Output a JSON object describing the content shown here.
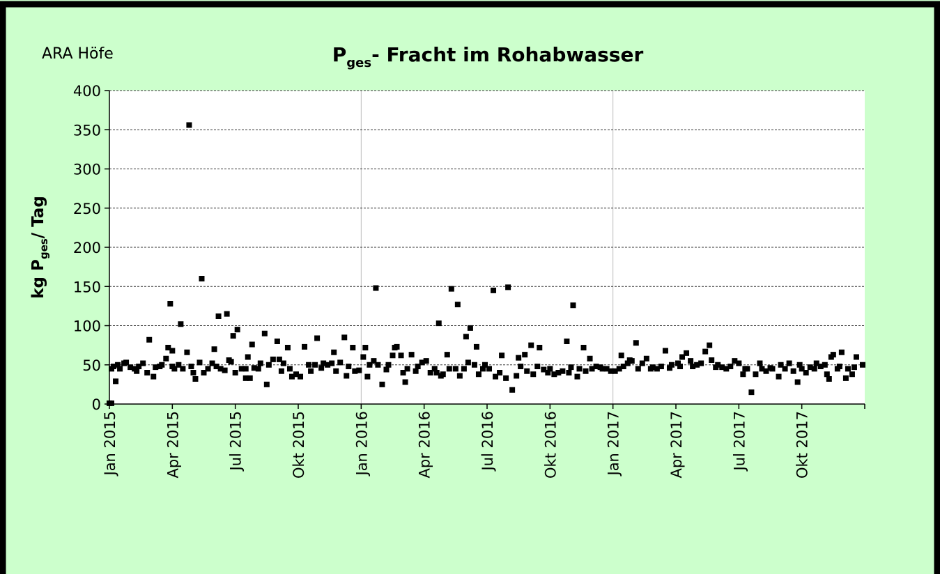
{
  "chart_data": {
    "type": "scatter",
    "title": [
      "P",
      "ges",
      "- Fracht im Rohabwasser"
    ],
    "annotation": "ARA Höfe",
    "ylabel": [
      "kg P",
      "ges",
      "/ Tag"
    ],
    "color": "#000000",
    "grid": true,
    "xgrid": [
      12,
      24
    ],
    "xlim": [
      0,
      36
    ],
    "ylim": [
      0,
      400
    ],
    "yticks": [
      0,
      50,
      100,
      150,
      200,
      250,
      300,
      350,
      400
    ],
    "xticks": [
      {
        "value": 0,
        "label": "Jan 2015"
      },
      {
        "value": 3,
        "label": "Apr 2015"
      },
      {
        "value": 6,
        "label": "Jul 2015"
      },
      {
        "value": 9,
        "label": "Okt 2015"
      },
      {
        "value": 12,
        "label": "Jan 2016"
      },
      {
        "value": 15,
        "label": "Apr 2016"
      },
      {
        "value": 18,
        "label": "Jul 2016"
      },
      {
        "value": 21,
        "label": "Okt 2016"
      },
      {
        "value": 24,
        "label": "Jan 2017"
      },
      {
        "value": 27,
        "label": "Apr 2017"
      },
      {
        "value": 30,
        "label": "Jul 2017"
      },
      {
        "value": 33,
        "label": "Okt 2017"
      }
    ],
    "x": [
      0,
      0.1,
      0.1,
      0.2,
      0.3,
      0.4,
      0.5,
      0.7,
      0.8,
      1.0,
      1.2,
      1.3,
      1.4,
      1.6,
      1.8,
      1.9,
      2.1,
      2.2,
      2.4,
      2.5,
      2.7,
      2.8,
      2.9,
      3.0,
      3.0,
      3.1,
      3.3,
      3.4,
      3.5,
      3.7,
      3.8,
      3.9,
      4.0,
      4.1,
      4.3,
      4.4,
      4.5,
      4.7,
      4.9,
      5.0,
      5.1,
      5.2,
      5.3,
      5.5,
      5.6,
      5.7,
      5.8,
      5.9,
      6.0,
      6.1,
      6.3,
      6.5,
      6.5,
      6.6,
      6.7,
      6.8,
      6.9,
      7.1,
      7.2,
      7.4,
      7.5,
      7.6,
      7.8,
      8.0,
      8.1,
      8.2,
      8.3,
      8.5,
      8.6,
      8.7,
      8.9,
      9.1,
      9.3,
      9.5,
      9.6,
      9.8,
      9.9,
      10.1,
      10.2,
      10.4,
      10.6,
      10.7,
      10.8,
      11.0,
      11.2,
      11.3,
      11.4,
      11.6,
      11.7,
      11.9,
      12.1,
      12.2,
      12.3,
      12.4,
      12.6,
      12.7,
      12.8,
      13.0,
      13.2,
      13.3,
      13.5,
      13.6,
      13.7,
      13.9,
      14.0,
      14.1,
      14.2,
      14.4,
      14.6,
      14.7,
      14.9,
      15.1,
      15.3,
      15.5,
      15.6,
      15.7,
      15.8,
      15.9,
      16.1,
      16.2,
      16.3,
      16.5,
      16.6,
      16.7,
      16.9,
      17.0,
      17.1,
      17.2,
      17.4,
      17.5,
      17.6,
      17.8,
      17.9,
      18.1,
      18.3,
      18.4,
      18.6,
      18.7,
      18.9,
      19.0,
      19.2,
      19.4,
      19.5,
      19.6,
      19.8,
      19.9,
      20.1,
      20.2,
      20.4,
      20.5,
      20.7,
      20.9,
      21.0,
      21.2,
      21.4,
      21.6,
      21.8,
      21.9,
      22.0,
      22.1,
      22.3,
      22.4,
      22.6,
      22.7,
      22.9,
      23.0,
      23.2,
      23.4,
      23.5,
      23.7,
      23.9,
      24.1,
      24.3,
      24.4,
      24.5,
      24.7,
      24.8,
      24.9,
      25.1,
      25.2,
      25.4,
      25.6,
      25.8,
      25.9,
      26.1,
      26.3,
      26.5,
      26.7,
      26.8,
      27.1,
      27.2,
      27.3,
      27.5,
      27.7,
      27.8,
      28.0,
      28.2,
      28.4,
      28.6,
      28.7,
      28.9,
      29.0,
      29.2,
      29.4,
      29.6,
      29.8,
      30.0,
      30.2,
      30.3,
      30.4,
      30.6,
      30.8,
      31.0,
      31.1,
      31.3,
      31.5,
      31.6,
      31.9,
      32.0,
      32.2,
      32.4,
      32.6,
      32.8,
      32.9,
      33.0,
      33.2,
      33.4,
      33.6,
      33.7,
      33.9,
      34.1,
      34.2,
      34.3,
      34.4,
      34.5,
      34.7,
      34.8,
      34.9,
      35.1,
      35.2,
      35.4,
      35.5,
      35.6,
      35.9
    ],
    "values": [
      1,
      1,
      45,
      48,
      29,
      50,
      45,
      52,
      53,
      47,
      45,
      42,
      48,
      52,
      40,
      82,
      35,
      47,
      48,
      50,
      58,
      72,
      128,
      48,
      68,
      45,
      50,
      102,
      45,
      66,
      356,
      48,
      40,
      32,
      53,
      160,
      40,
      45,
      52,
      70,
      48,
      112,
      45,
      43,
      115,
      56,
      54,
      87,
      40,
      95,
      45,
      45,
      33,
      60,
      33,
      76,
      46,
      45,
      52,
      90,
      25,
      50,
      57,
      80,
      57,
      42,
      52,
      72,
      45,
      35,
      38,
      35,
      73,
      50,
      42,
      50,
      84,
      46,
      52,
      50,
      52,
      66,
      42,
      53,
      85,
      36,
      48,
      72,
      42,
      43,
      60,
      72,
      35,
      50,
      55,
      148,
      50,
      25,
      44,
      50,
      62,
      72,
      73,
      62,
      40,
      28,
      45,
      63,
      42,
      48,
      53,
      55,
      40,
      45,
      40,
      103,
      36,
      38,
      63,
      45,
      147,
      45,
      127,
      36,
      45,
      86,
      53,
      97,
      50,
      73,
      38,
      45,
      50,
      45,
      145,
      35,
      40,
      62,
      33,
      149,
      18,
      36,
      59,
      48,
      63,
      42,
      75,
      38,
      48,
      72,
      44,
      40,
      45,
      38,
      40,
      42,
      80,
      40,
      47,
      126,
      35,
      45,
      72,
      42,
      58,
      45,
      48,
      47,
      45,
      45,
      42,
      42,
      45,
      62,
      48,
      52,
      56,
      55,
      78,
      45,
      52,
      58,
      45,
      47,
      45,
      48,
      68,
      46,
      50,
      52,
      48,
      60,
      65,
      55,
      48,
      50,
      52,
      67,
      75,
      56,
      47,
      50,
      47,
      45,
      48,
      55,
      52,
      38,
      45,
      45,
      15,
      38,
      52,
      45,
      42,
      46,
      45,
      35,
      50,
      45,
      52,
      42,
      28,
      50,
      45,
      40,
      47,
      45,
      52,
      48,
      50,
      38,
      32,
      60,
      63,
      45,
      48,
      66,
      33,
      45,
      38,
      47,
      60,
      50
    ]
  }
}
